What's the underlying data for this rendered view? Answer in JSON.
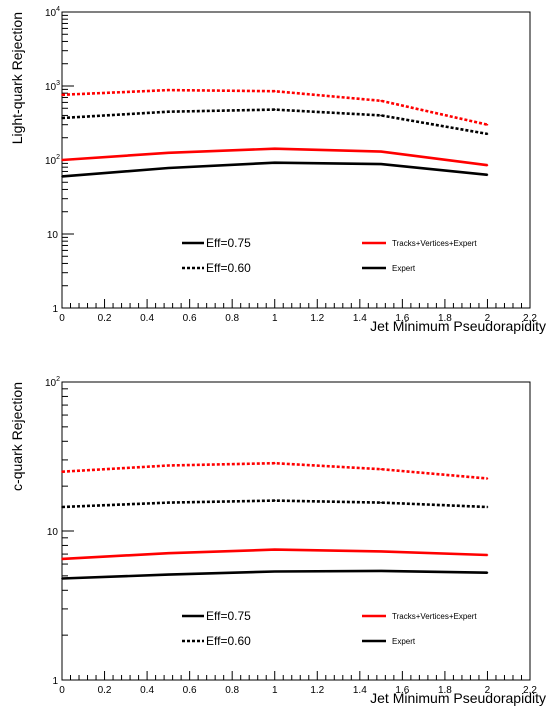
{
  "chart_data": [
    {
      "type": "line",
      "xlabel": "Jet Minimum Pseudorapidity",
      "ylabel": "Light-quark Rejection",
      "yscale": "log",
      "xlim": [
        0,
        2.2
      ],
      "ylim": [
        1,
        10000
      ],
      "x_ticks": [
        "0",
        "0.2",
        "0.4",
        "0.6",
        "0.8",
        "1",
        "1.2",
        "1.4",
        "1.6",
        "1.8",
        "2",
        "2.2"
      ],
      "y_ticks": [
        {
          "base": "1",
          "exp": ""
        },
        {
          "base": "10",
          "exp": ""
        },
        {
          "base": "10",
          "exp": "2"
        },
        {
          "base": "10",
          "exp": "3"
        },
        {
          "base": "10",
          "exp": "4"
        }
      ],
      "grid": false,
      "x": [
        0,
        0.5,
        1,
        1.5,
        2
      ],
      "series": [
        {
          "color": "#ff0000",
          "line": "solid",
          "values": [
            100,
            125,
            142,
            130,
            85
          ]
        },
        {
          "color": "#000000",
          "line": "solid",
          "values": [
            60,
            78,
            92,
            88,
            63
          ]
        },
        {
          "color": "#ff0000",
          "line": "dotted",
          "values": [
            760,
            880,
            850,
            630,
            300
          ]
        },
        {
          "color": "#000000",
          "line": "dotted",
          "values": [
            370,
            450,
            480,
            400,
            225
          ]
        }
      ],
      "legend": {
        "placement": "inside-lower",
        "items": [
          {
            "label": "Eff=0.75",
            "color": "#000000",
            "line": "solid"
          },
          {
            "label": "Eff=0.60",
            "color": "#000000",
            "line": "dotted"
          },
          {
            "label": "Tracks+Vertices+Expert",
            "color": "#ff0000",
            "line": "solid"
          },
          {
            "label": "Expert",
            "color": "#000000",
            "line": "solid"
          }
        ]
      }
    },
    {
      "type": "line",
      "xlabel": "Jet Minimum Pseudorapidity",
      "ylabel": "c-quark Rejection",
      "yscale": "log",
      "xlim": [
        0,
        2.2
      ],
      "ylim": [
        1,
        100
      ],
      "x_ticks": [
        "0",
        "0.2",
        "0.4",
        "0.6",
        "0.8",
        "1",
        "1.2",
        "1.4",
        "1.6",
        "1.8",
        "2",
        "2.2"
      ],
      "y_ticks": [
        {
          "base": "1",
          "exp": ""
        },
        {
          "base": "10",
          "exp": ""
        },
        {
          "base": "10",
          "exp": "2"
        }
      ],
      "grid": false,
      "x": [
        0,
        0.5,
        1,
        1.5,
        2
      ],
      "series": [
        {
          "color": "#ff0000",
          "line": "solid",
          "values": [
            6.5,
            7.1,
            7.5,
            7.3,
            6.9
          ]
        },
        {
          "color": "#000000",
          "line": "solid",
          "values": [
            4.8,
            5.1,
            5.35,
            5.4,
            5.25
          ]
        },
        {
          "color": "#ff0000",
          "line": "dotted",
          "values": [
            25,
            27.5,
            28.5,
            26,
            22.5
          ]
        },
        {
          "color": "#000000",
          "line": "dotted",
          "values": [
            14.5,
            15.5,
            16,
            15.5,
            14.5
          ]
        }
      ],
      "legend": {
        "placement": "inside-lower",
        "items": [
          {
            "label": "Eff=0.75",
            "color": "#000000",
            "line": "solid"
          },
          {
            "label": "Eff=0.60",
            "color": "#000000",
            "line": "dotted"
          },
          {
            "label": "Tracks+Vertices+Expert",
            "color": "#ff0000",
            "line": "solid"
          },
          {
            "label": "Expert",
            "color": "#000000",
            "line": "solid"
          }
        ]
      }
    }
  ]
}
